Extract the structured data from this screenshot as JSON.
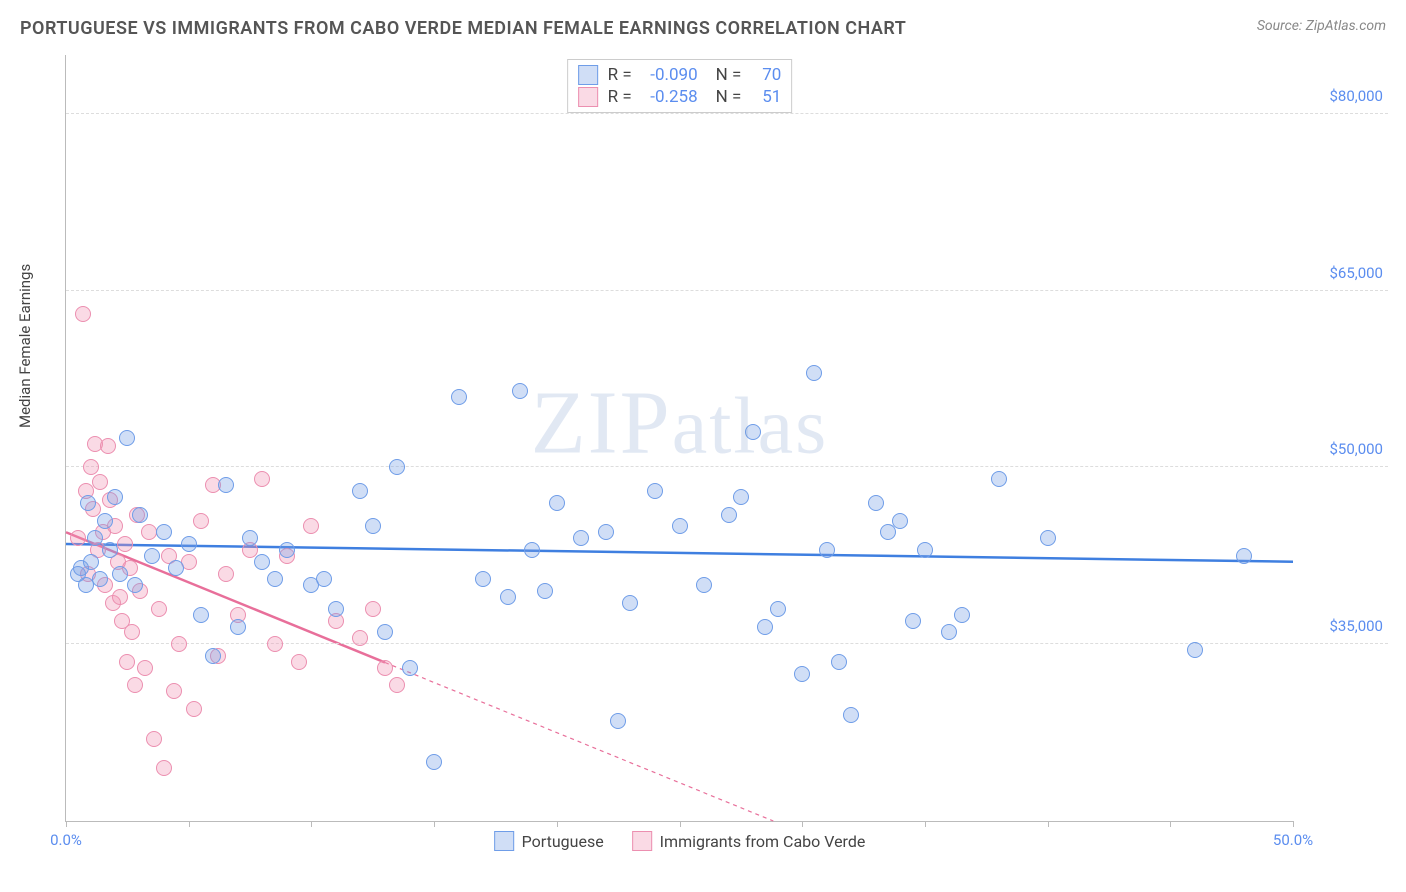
{
  "title": "PORTUGUESE VS IMMIGRANTS FROM CABO VERDE MEDIAN FEMALE EARNINGS CORRELATION CHART",
  "source_label": "Source: ",
  "source_site": "ZipAtlas.com",
  "ylabel": "Median Female Earnings",
  "watermark": "ZIPatlas",
  "chart": {
    "type": "scatter",
    "xlim": [
      0,
      50
    ],
    "ylim": [
      20000,
      85000
    ],
    "x_tick_positions": [
      0,
      5,
      10,
      15,
      20,
      25,
      30,
      35,
      40,
      45,
      50
    ],
    "x_tick_labels_shown": {
      "0": "0.0%",
      "50": "50.0%"
    },
    "y_ticks": [
      35000,
      50000,
      65000,
      80000
    ],
    "y_tick_labels": [
      "$35,000",
      "$50,000",
      "$65,000",
      "$80,000"
    ],
    "background_color": "#ffffff",
    "grid_color": "#dddddd",
    "axis_color": "#bbbbbb",
    "tick_label_color": "#5b8def",
    "marker_radius": 8,
    "marker_border_width": 1.5,
    "series": [
      {
        "name": "Portuguese",
        "color_fill": "rgba(120,160,230,0.35)",
        "color_border": "#6f9de8",
        "r": "-0.090",
        "n": "70",
        "trend": {
          "x1": 0,
          "y1": 43500,
          "x2": 50,
          "y2": 42000,
          "color": "#3f7fe0",
          "width": 2.5,
          "dash": "none"
        },
        "points": [
          [
            0.5,
            41000
          ],
          [
            0.6,
            41500
          ],
          [
            0.8,
            40000
          ],
          [
            0.9,
            47000
          ],
          [
            1.0,
            42000
          ],
          [
            1.2,
            44000
          ],
          [
            1.4,
            40500
          ],
          [
            1.6,
            45500
          ],
          [
            1.8,
            43000
          ],
          [
            2.0,
            47500
          ],
          [
            2.2,
            41000
          ],
          [
            2.5,
            52500
          ],
          [
            2.8,
            40000
          ],
          [
            3.0,
            46000
          ],
          [
            3.5,
            42500
          ],
          [
            4.0,
            44500
          ],
          [
            4.5,
            41500
          ],
          [
            5.0,
            43500
          ],
          [
            5.5,
            37500
          ],
          [
            6.0,
            34000
          ],
          [
            6.5,
            48500
          ],
          [
            7.0,
            36500
          ],
          [
            7.5,
            44000
          ],
          [
            8.0,
            42000
          ],
          [
            8.5,
            40500
          ],
          [
            9.0,
            43000
          ],
          [
            10.0,
            40000
          ],
          [
            10.5,
            40500
          ],
          [
            11.0,
            38000
          ],
          [
            12.0,
            48000
          ],
          [
            12.5,
            45000
          ],
          [
            13.0,
            36000
          ],
          [
            13.5,
            50000
          ],
          [
            14.0,
            33000
          ],
          [
            15.0,
            25000
          ],
          [
            16.0,
            56000
          ],
          [
            17.0,
            40500
          ],
          [
            18.0,
            39000
          ],
          [
            18.5,
            56500
          ],
          [
            19.0,
            43000
          ],
          [
            19.5,
            39500
          ],
          [
            20.0,
            47000
          ],
          [
            21.0,
            44000
          ],
          [
            22.0,
            44500
          ],
          [
            22.5,
            28500
          ],
          [
            23.0,
            38500
          ],
          [
            24.0,
            48000
          ],
          [
            25.0,
            45000
          ],
          [
            26.0,
            40000
          ],
          [
            27.0,
            46000
          ],
          [
            27.5,
            47500
          ],
          [
            28.0,
            53000
          ],
          [
            28.5,
            36500
          ],
          [
            29.0,
            38000
          ],
          [
            30.0,
            32500
          ],
          [
            30.5,
            58000
          ],
          [
            31.0,
            43000
          ],
          [
            31.5,
            33500
          ],
          [
            32.0,
            29000
          ],
          [
            33.0,
            47000
          ],
          [
            33.5,
            44500
          ],
          [
            34.0,
            45500
          ],
          [
            34.5,
            37000
          ],
          [
            35.0,
            43000
          ],
          [
            36.0,
            36000
          ],
          [
            36.5,
            37500
          ],
          [
            38.0,
            49000
          ],
          [
            40.0,
            44000
          ],
          [
            46.0,
            34500
          ],
          [
            48.0,
            42500
          ]
        ]
      },
      {
        "name": "Immigrants from Cabo Verde",
        "color_fill": "rgba(240,150,180,0.35)",
        "color_border": "#ec8fb0",
        "r": "-0.258",
        "n": "51",
        "trend": {
          "x1": 0,
          "y1": 44500,
          "x2": 30,
          "y2": 19000,
          "color": "#e86f9a",
          "width": 2.5,
          "dash": "none",
          "extend_dash_to": 50,
          "extend_y": 2000
        },
        "points": [
          [
            0.5,
            44000
          ],
          [
            0.7,
            63000
          ],
          [
            0.8,
            48000
          ],
          [
            0.9,
            41000
          ],
          [
            1.0,
            50000
          ],
          [
            1.1,
            46500
          ],
          [
            1.2,
            52000
          ],
          [
            1.3,
            43000
          ],
          [
            1.4,
            48800
          ],
          [
            1.5,
            44500
          ],
          [
            1.6,
            40000
          ],
          [
            1.7,
            51800
          ],
          [
            1.8,
            47200
          ],
          [
            1.9,
            38500
          ],
          [
            2.0,
            45000
          ],
          [
            2.1,
            42000
          ],
          [
            2.2,
            39000
          ],
          [
            2.3,
            37000
          ],
          [
            2.4,
            43500
          ],
          [
            2.5,
            33500
          ],
          [
            2.6,
            41500
          ],
          [
            2.7,
            36000
          ],
          [
            2.8,
            31500
          ],
          [
            2.9,
            46000
          ],
          [
            3.0,
            39500
          ],
          [
            3.2,
            33000
          ],
          [
            3.4,
            44500
          ],
          [
            3.6,
            27000
          ],
          [
            3.8,
            38000
          ],
          [
            4.0,
            24500
          ],
          [
            4.2,
            42500
          ],
          [
            4.4,
            31000
          ],
          [
            4.6,
            35000
          ],
          [
            5.0,
            42000
          ],
          [
            5.2,
            29500
          ],
          [
            5.5,
            45500
          ],
          [
            6.0,
            48500
          ],
          [
            6.2,
            34000
          ],
          [
            6.5,
            41000
          ],
          [
            7.0,
            37500
          ],
          [
            7.5,
            43000
          ],
          [
            8.0,
            49000
          ],
          [
            8.5,
            35000
          ],
          [
            9.0,
            42500
          ],
          [
            9.5,
            33500
          ],
          [
            10.0,
            45000
          ],
          [
            11.0,
            37000
          ],
          [
            12.0,
            35500
          ],
          [
            12.5,
            38000
          ],
          [
            13.0,
            33000
          ],
          [
            13.5,
            31500
          ]
        ]
      }
    ]
  },
  "legend_bottom": [
    {
      "label": "Portuguese"
    },
    {
      "label": "Immigrants from Cabo Verde"
    }
  ]
}
